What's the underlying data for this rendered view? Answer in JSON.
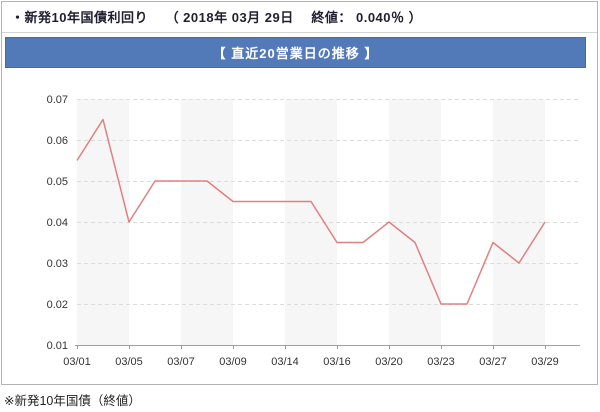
{
  "header": {
    "title": "・新発10年国債利回り　 （ 2018年 03月 29日　 終値： 0.040％ ）"
  },
  "banner": {
    "label": "【 直近20営業日の推移 】"
  },
  "footer": {
    "note": "※新発10年国債（終値）"
  },
  "colors": {
    "banner_bg": "#527ab8",
    "banner_border": "#46699f",
    "line": "#e08080",
    "stripe": "#f6f6f6",
    "grid": "#dcdcdc",
    "axis": "#a0a0a0",
    "tick": "#999999",
    "axis_text": "#333333"
  },
  "chart_data": {
    "type": "line",
    "title": "直近20営業日の推移",
    "series_name": "新発10年国債利回り（終値、％）",
    "ylim": [
      0.01,
      0.07
    ],
    "yticks": [
      "0.07",
      "0.06",
      "0.05",
      "0.04",
      "0.03",
      "0.02",
      "0.01"
    ],
    "xtick_labels": [
      "03/01",
      "03/05",
      "03/07",
      "03/09",
      "03/14",
      "03/16",
      "03/20",
      "03/23",
      "03/27",
      "03/29"
    ],
    "grid": "dashed-horizontal",
    "legend": "none",
    "points": [
      {
        "date": "03/01",
        "value": 0.055
      },
      {
        "date": "",
        "value": 0.065
      },
      {
        "date": "03/05",
        "value": 0.04
      },
      {
        "date": "",
        "value": 0.05
      },
      {
        "date": "03/07",
        "value": 0.05
      },
      {
        "date": "",
        "value": 0.05
      },
      {
        "date": "03/09",
        "value": 0.045
      },
      {
        "date": "",
        "value": 0.045
      },
      {
        "date": "",
        "value": 0.045
      },
      {
        "date": "03/14",
        "value": 0.045
      },
      {
        "date": "",
        "value": 0.045
      },
      {
        "date": "03/16",
        "value": 0.035
      },
      {
        "date": "",
        "value": 0.035
      },
      {
        "date": "03/20",
        "value": 0.04
      },
      {
        "date": "",
        "value": 0.035
      },
      {
        "date": "03/23",
        "value": 0.02
      },
      {
        "date": "",
        "value": 0.02
      },
      {
        "date": "03/27",
        "value": 0.035
      },
      {
        "date": "",
        "value": 0.03
      },
      {
        "date": "03/29",
        "value": 0.04
      }
    ]
  }
}
